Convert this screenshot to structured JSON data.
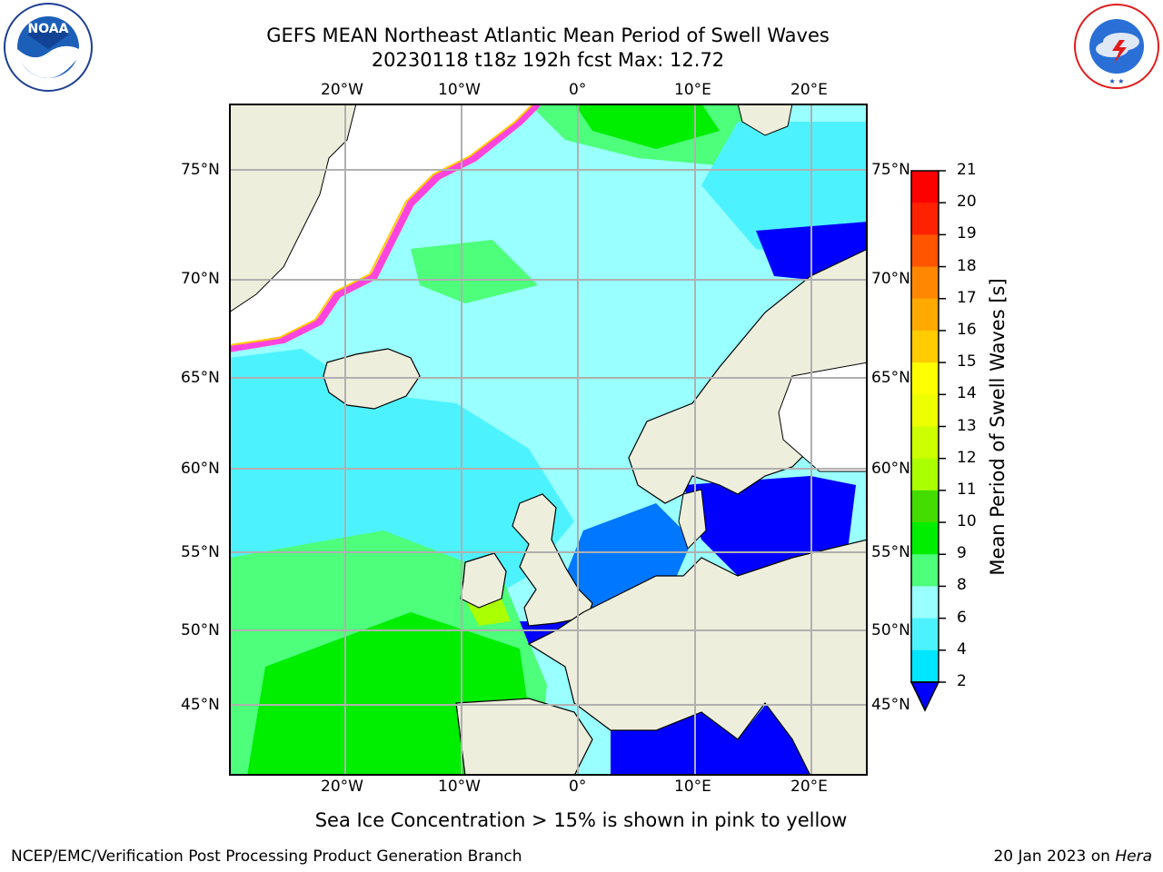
{
  "header": {
    "title_line1": "GEFS MEAN Northeast Atlantic Mean Period of Swell Waves",
    "title_line2": "20230118 t18z 192h fcst   Max: 12.72"
  },
  "logos": {
    "left": {
      "name": "noaa-logo",
      "text": "NOAA",
      "ring_text": "NATIONAL OCEANIC AND ATMOSPHERIC ADMINISTRATION · U.S. DEPARTMENT OF COMMERCE"
    },
    "right": {
      "name": "nws-logo",
      "ring_text": "NATIONAL WEATHER SERVICE"
    }
  },
  "map": {
    "projection": "lat-lon",
    "lon_range": [
      "30°W",
      "24°E"
    ],
    "lat_range": [
      "41°N",
      "78°N"
    ],
    "lon_ticks": [
      "20°W",
      "10°W",
      "0°",
      "10°E",
      "20°E"
    ],
    "lat_ticks": [
      "75°N",
      "70°N",
      "65°N",
      "60°N",
      "55°N",
      "50°N",
      "45°N"
    ],
    "grid": true,
    "colors": {
      "land": "#eeeedd",
      "coast": "#000000",
      "grid": "#b0b0b0",
      "no_data": "#ffffff"
    },
    "note": "Sea Ice Concentration > 15% is shown in pink to yellow"
  },
  "colorbar": {
    "label": "Mean Period of Swell Waves [s]",
    "extend": "min",
    "levels": [
      "2",
      "4",
      "6",
      "8",
      "9",
      "10",
      "11",
      "12",
      "13",
      "14",
      "15",
      "16",
      "17",
      "18",
      "19",
      "20",
      "21"
    ],
    "colors": [
      "#0000ff",
      "#0077ff",
      "#00e6ff",
      "#4df2ff",
      "#99ffff",
      "#4dff7a",
      "#00ee00",
      "#44dd00",
      "#aaff00",
      "#ccff00",
      "#eeff00",
      "#ffff00",
      "#ffcc00",
      "#ffaa00",
      "#ff8800",
      "#ff5500",
      "#ff2200",
      "#ff0000"
    ]
  },
  "footer": {
    "left": "NCEP/EMC/Verification Post Processing Product Generation Branch",
    "right_date": "20 Jan 2023 on ",
    "right_host": "Hera"
  }
}
